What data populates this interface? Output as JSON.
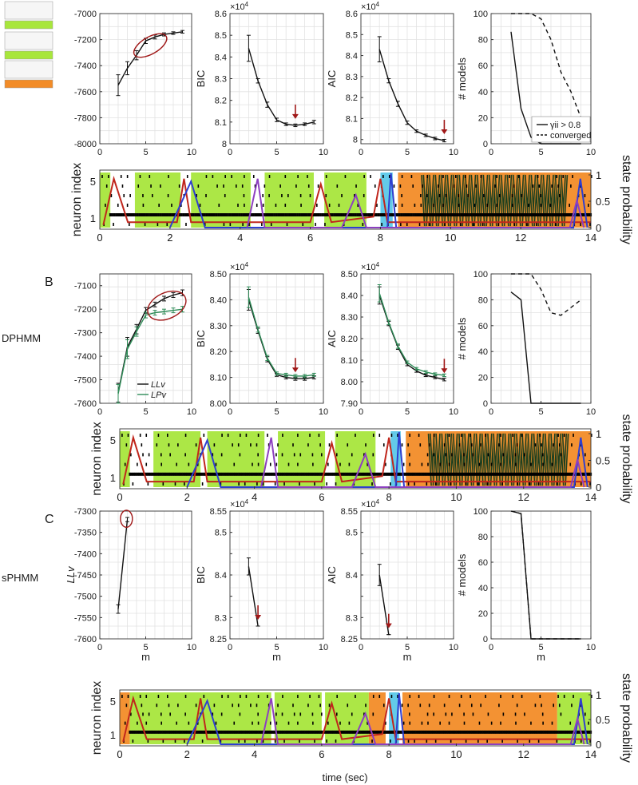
{
  "figure": {
    "panel_letters": [
      "B",
      "C"
    ],
    "row_labels": [
      "DPHMM",
      "sPHMM"
    ],
    "xlabel_m": "m",
    "xlabel_time": "time (sec)",
    "ylabel_raster": "neuron index",
    "ylabel_state": "state probability",
    "exp_label": "×10",
    "exp_power": "4"
  },
  "chart_data": [
    {
      "id": "A-LL",
      "type": "line",
      "row": "A",
      "col": "ll",
      "xlim": [
        0,
        10
      ],
      "ylim": [
        -8000,
        -7000
      ],
      "grid": true,
      "xticks": [
        0,
        5,
        10
      ],
      "yticks": [
        -7000,
        -7200,
        -7400,
        -7600,
        -7800,
        -8000
      ],
      "ylabel": "",
      "xlabel": "",
      "series": [
        {
          "name": "LL",
          "color": "#111111",
          "x": [
            2,
            3,
            4,
            5,
            6,
            7,
            8,
            9
          ],
          "y": [
            -7550,
            -7420,
            -7320,
            -7210,
            -7180,
            -7160,
            -7150,
            -7140
          ],
          "err": [
            80,
            50,
            35,
            20,
            15,
            12,
            10,
            10
          ]
        }
      ],
      "ellipse": {
        "cx": 5.5,
        "cy": -7245,
        "rx": 2.0,
        "ry": 65,
        "rot": -30
      },
      "has_inset": true
    },
    {
      "id": "A-BIC",
      "type": "line",
      "row": "A",
      "col": "bic",
      "xlim": [
        0,
        10
      ],
      "ylim": [
        8.0,
        8.6
      ],
      "grid": true,
      "xticks": [
        0,
        5,
        10
      ],
      "yticks": [
        8,
        8.1,
        8.2,
        8.3,
        8.4,
        8.5,
        8.6
      ],
      "ylabel": "BIC",
      "exponent": true,
      "series": [
        {
          "name": "BIC",
          "color": "#111111",
          "x": [
            2,
            3,
            4,
            5,
            6,
            7,
            8,
            9
          ],
          "y": [
            8.44,
            8.29,
            8.18,
            8.11,
            8.09,
            8.085,
            8.09,
            8.1
          ],
          "err": [
            0.06,
            0.01,
            0.012,
            0.008,
            0.006,
            0.006,
            0.006,
            0.008
          ]
        }
      ],
      "arrow_x": 7
    },
    {
      "id": "A-AIC",
      "type": "line",
      "row": "A",
      "col": "aic",
      "xlim": [
        0,
        10
      ],
      "ylim": [
        7.98,
        8.6
      ],
      "grid": true,
      "xticks": [
        0,
        5,
        10
      ],
      "yticks": [
        8,
        8.1,
        8.2,
        8.3,
        8.4,
        8.5,
        8.6
      ],
      "ylabel": "AIC",
      "exponent": true,
      "series": [
        {
          "name": "AIC",
          "color": "#111111",
          "x": [
            2,
            3,
            4,
            5,
            6,
            7,
            8,
            9
          ],
          "y": [
            8.43,
            8.28,
            8.17,
            8.08,
            8.04,
            8.02,
            8.005,
            7.995
          ],
          "err": [
            0.06,
            0.01,
            0.012,
            0.008,
            0.006,
            0.006,
            0.006,
            0.006
          ]
        }
      ],
      "arrow_x": 9
    },
    {
      "id": "A-MOD",
      "type": "line",
      "row": "A",
      "col": "mod",
      "xlim": [
        0,
        10
      ],
      "ylim": [
        0,
        100
      ],
      "grid": true,
      "xticks": [
        0,
        5,
        10
      ],
      "yticks": [
        0,
        20,
        40,
        60,
        80,
        100
      ],
      "ylabel": "# models",
      "series": [
        {
          "name": "γii > 0.8",
          "color": "#111111",
          "dash": "",
          "x": [
            2,
            3,
            4,
            5,
            6,
            7,
            8,
            9
          ],
          "y": [
            86,
            27,
            5,
            0,
            0,
            0,
            0,
            0
          ]
        },
        {
          "name": "converged",
          "color": "#111111",
          "dash": "5,4",
          "x": [
            2,
            3,
            4,
            5,
            6,
            7,
            8,
            9
          ],
          "y": [
            100,
            100,
            100,
            96,
            80,
            55,
            40,
            20
          ]
        }
      ],
      "legend": [
        "γii > 0.8",
        "converged"
      ],
      "legend_loc": "lower-right"
    },
    {
      "id": "B-LL",
      "type": "line",
      "row": "B",
      "col": "ll",
      "xlim": [
        0,
        10
      ],
      "ylim": [
        -7600,
        -7050
      ],
      "grid": true,
      "xticks": [
        0,
        5,
        10
      ],
      "yticks": [
        -7100,
        -7200,
        -7300,
        -7400,
        -7500,
        -7600
      ],
      "ylabel": "",
      "series": [
        {
          "name": "LLv",
          "color": "#111111",
          "x": [
            2,
            3,
            4,
            5,
            6,
            7,
            8,
            9
          ],
          "y": [
            -7555,
            -7360,
            -7285,
            -7205,
            -7180,
            -7155,
            -7140,
            -7130
          ],
          "err": [
            40,
            40,
            20,
            12,
            10,
            10,
            10,
            12
          ]
        },
        {
          "name": "LPv",
          "color": "#2e8b57",
          "x": [
            2,
            3,
            4,
            5,
            6,
            7,
            8,
            9
          ],
          "y": [
            -7560,
            -7370,
            -7295,
            -7225,
            -7215,
            -7210,
            -7205,
            -7200
          ],
          "err": [
            40,
            40,
            20,
            12,
            10,
            10,
            10,
            12
          ]
        }
      ],
      "ellipse": {
        "cx": 7.3,
        "cy": -7185,
        "rx": 2.2,
        "ry": 55,
        "rot": -25
      },
      "legend": [
        "LLv",
        "LPv"
      ],
      "legend_loc": "lower-right"
    },
    {
      "id": "B-BIC",
      "type": "line",
      "row": "B",
      "col": "bic",
      "xlim": [
        0,
        10
      ],
      "ylim": [
        8.0,
        8.5
      ],
      "grid": true,
      "xticks": [
        0,
        5,
        10
      ],
      "yticks": [
        8.0,
        8.1,
        8.2,
        8.3,
        8.4,
        8.5
      ],
      "ytick_labels": [
        "8.00",
        "8.10",
        "8.20",
        "8.30",
        "8.40",
        "8.50"
      ],
      "ylabel": "BIC",
      "exponent": true,
      "series": [
        {
          "name": "LLv",
          "color": "#111111",
          "x": [
            2,
            3,
            4,
            5,
            6,
            7,
            8,
            9
          ],
          "y": [
            8.4,
            8.28,
            8.17,
            8.11,
            8.1,
            8.095,
            8.095,
            8.1
          ],
          "err": [
            0.04,
            0.01,
            0.01,
            0.006,
            0.006,
            0.006,
            0.006,
            0.006
          ]
        },
        {
          "name": "LPv",
          "color": "#2e8b57",
          "x": [
            2,
            3,
            4,
            5,
            6,
            7,
            8,
            9
          ],
          "y": [
            8.41,
            8.285,
            8.175,
            8.115,
            8.11,
            8.105,
            8.105,
            8.11
          ],
          "err": [
            0.04,
            0.01,
            0.01,
            0.006,
            0.006,
            0.006,
            0.006,
            0.006
          ]
        }
      ],
      "arrow_x": 7
    },
    {
      "id": "B-AIC",
      "type": "line",
      "row": "B",
      "col": "aic",
      "xlim": [
        0,
        10
      ],
      "ylim": [
        7.9,
        8.5
      ],
      "grid": true,
      "xticks": [
        0,
        5,
        10
      ],
      "yticks": [
        7.9,
        8.0,
        8.1,
        8.2,
        8.3,
        8.4,
        8.5
      ],
      "ytick_labels": [
        "7.90",
        "8.00",
        "8.10",
        "8.20",
        "8.30",
        "8.40",
        "8.50"
      ],
      "ylabel": "AIC",
      "exponent": true,
      "series": [
        {
          "name": "LLv",
          "color": "#111111",
          "x": [
            2,
            3,
            4,
            5,
            6,
            7,
            8,
            9
          ],
          "y": [
            8.4,
            8.27,
            8.16,
            8.08,
            8.05,
            8.03,
            8.02,
            8.01
          ],
          "err": [
            0.04,
            0.01,
            0.01,
            0.006,
            0.006,
            0.006,
            0.006,
            0.006
          ]
        },
        {
          "name": "LPv",
          "color": "#2e8b57",
          "x": [
            2,
            3,
            4,
            5,
            6,
            7,
            8,
            9
          ],
          "y": [
            8.41,
            8.275,
            8.165,
            8.09,
            8.06,
            8.045,
            8.035,
            8.03
          ],
          "err": [
            0.04,
            0.01,
            0.01,
            0.006,
            0.006,
            0.006,
            0.006,
            0.006
          ]
        }
      ],
      "arrow_x": 9
    },
    {
      "id": "B-MOD",
      "type": "line",
      "row": "B",
      "col": "mod",
      "xlim": [
        0,
        10
      ],
      "ylim": [
        0,
        100
      ],
      "grid": true,
      "xticks": [
        0,
        5,
        10
      ],
      "yticks": [
        0,
        20,
        40,
        60,
        80,
        100
      ],
      "ylabel": "# models",
      "series": [
        {
          "name": "γii > 0.8",
          "color": "#111111",
          "dash": "",
          "x": [
            2,
            3,
            4,
            5,
            6,
            7,
            8,
            9
          ],
          "y": [
            86,
            80,
            0,
            0,
            0,
            0,
            0,
            0
          ]
        },
        {
          "name": "converged",
          "color": "#111111",
          "dash": "5,4",
          "x": [
            2,
            3,
            4,
            5,
            6,
            7,
            8,
            9
          ],
          "y": [
            100,
            100,
            100,
            88,
            70,
            68,
            74,
            80
          ]
        }
      ]
    },
    {
      "id": "C-LL",
      "type": "line",
      "row": "C",
      "col": "ll",
      "xlim": [
        0,
        10
      ],
      "ylim": [
        -7600,
        -7300
      ],
      "grid": true,
      "xticks": [
        0,
        5,
        10
      ],
      "yticks": [
        -7300,
        -7350,
        -7400,
        -7450,
        -7500,
        -7550,
        -7600
      ],
      "ylabel": "LLv",
      "series": [
        {
          "name": "LLv",
          "color": "#111111",
          "x": [
            2,
            3
          ],
          "y": [
            -7530,
            -7320
          ],
          "err": [
            10,
            5
          ]
        }
      ],
      "ellipse": {
        "cx": 2.9,
        "cy": -7318,
        "rx": 0.65,
        "ry": 20,
        "rot": 0
      }
    },
    {
      "id": "C-BIC",
      "type": "line",
      "row": "C",
      "col": "bic",
      "xlim": [
        0,
        10
      ],
      "ylim": [
        8.25,
        8.55
      ],
      "grid": true,
      "xticks": [
        0,
        5,
        10
      ],
      "yticks": [
        8.25,
        8.3,
        8.35,
        8.4,
        8.45,
        8.5,
        8.55
      ],
      "ytick_labels": [
        "8.25",
        "8.3",
        "",
        "8.4",
        "",
        "8.5",
        "8.55"
      ],
      "ylabel": "BIC",
      "exponent": true,
      "series": [
        {
          "name": "BIC",
          "color": "#111111",
          "x": [
            2,
            3
          ],
          "y": [
            8.42,
            8.28
          ],
          "err": [
            0.02,
            0.0
          ]
        }
      ],
      "arrow_x": 3
    },
    {
      "id": "C-AIC",
      "type": "line",
      "row": "C",
      "col": "aic",
      "xlim": [
        0,
        10
      ],
      "ylim": [
        8.25,
        8.55
      ],
      "grid": true,
      "xticks": [
        0,
        5,
        10
      ],
      "yticks": [
        8.25,
        8.3,
        8.35,
        8.4,
        8.45,
        8.5,
        8.55
      ],
      "ytick_labels": [
        "8.25",
        "8.3",
        "",
        "8.4",
        "",
        "8.5",
        "8.55"
      ],
      "ylabel": "AIC",
      "exponent": true,
      "series": [
        {
          "name": "AIC",
          "color": "#111111",
          "x": [
            2,
            3
          ],
          "y": [
            8.4,
            8.26
          ],
          "err": [
            0.025,
            0.0
          ]
        }
      ],
      "arrow_x": 3
    },
    {
      "id": "C-MOD",
      "type": "line",
      "row": "C",
      "col": "mod",
      "xlim": [
        0,
        10
      ],
      "ylim": [
        0,
        100
      ],
      "grid": true,
      "xticks": [
        0,
        5,
        10
      ],
      "yticks": [
        0,
        20,
        40,
        60,
        80,
        100
      ],
      "ylabel": "# models",
      "series": [
        {
          "name": "γii > 0.8",
          "color": "#111111",
          "dash": "",
          "x": [
            2,
            3,
            4,
            5,
            6,
            7,
            8,
            9
          ],
          "y": [
            100,
            98,
            0,
            0,
            0,
            0,
            0,
            0
          ]
        },
        {
          "name": "converged",
          "color": "#111111",
          "dash": "5,4",
          "x": [
            2,
            3,
            4,
            5,
            6,
            7,
            8,
            9
          ],
          "y": [
            100,
            98,
            0,
            0,
            0,
            0,
            0,
            0
          ]
        }
      ]
    },
    {
      "id": "A-RASTER",
      "type": "area",
      "row": "A",
      "col": "raster",
      "xlim": [
        0,
        14
      ],
      "xticks": [
        0,
        2,
        4,
        6,
        8,
        10,
        12,
        14
      ],
      "yticks_left": [
        1,
        5
      ],
      "yticks_right": [
        0,
        0.5,
        1
      ],
      "ytick_right_labels": [
        "0",
        "0.5",
        "1"
      ],
      "colors": {
        "green": "#a8e63c",
        "orange": "#f28c28",
        "blue": "#5bc8e8",
        "dark": "#1e4020"
      },
      "states": [
        {
          "from": 0.0,
          "to": 0.3,
          "state": "green"
        },
        {
          "from": 1.0,
          "to": 2.3,
          "state": "green"
        },
        {
          "from": 2.6,
          "to": 4.3,
          "state": "green"
        },
        {
          "from": 4.7,
          "to": 6.1,
          "state": "green"
        },
        {
          "from": 6.4,
          "to": 7.6,
          "state": "green"
        },
        {
          "from": 8.0,
          "to": 8.35,
          "state": "blue"
        },
        {
          "from": 8.5,
          "to": 14.0,
          "state": "orange"
        }
      ],
      "oscillation": {
        "from": 9.2,
        "to": 13.3,
        "state": "dark"
      }
    },
    {
      "id": "B-RASTER",
      "type": "area",
      "row": "B",
      "col": "raster",
      "xlim": [
        0,
        14
      ],
      "xticks": [
        0,
        2,
        4,
        6,
        8,
        10,
        12,
        14
      ],
      "yticks_left": [
        1,
        5
      ],
      "yticks_right": [
        0,
        0.5,
        1
      ],
      "ytick_right_labels": [
        "0",
        "0.5",
        "1"
      ],
      "colors": {
        "green": "#a8e63c",
        "orange": "#f28c28",
        "blue": "#5bc8e8",
        "dark": "#1e4020"
      },
      "states": [
        {
          "from": 0.0,
          "to": 0.3,
          "state": "green"
        },
        {
          "from": 1.0,
          "to": 2.4,
          "state": "green"
        },
        {
          "from": 2.6,
          "to": 4.3,
          "state": "green"
        },
        {
          "from": 4.7,
          "to": 6.1,
          "state": "green"
        },
        {
          "from": 6.4,
          "to": 7.6,
          "state": "green"
        },
        {
          "from": 8.05,
          "to": 8.35,
          "state": "blue"
        },
        {
          "from": 8.5,
          "to": 14.0,
          "state": "orange"
        }
      ],
      "oscillation": {
        "from": 9.2,
        "to": 13.3,
        "state": "dark"
      }
    },
    {
      "id": "C-RASTER",
      "type": "area",
      "row": "C",
      "col": "raster",
      "xlim": [
        0,
        14
      ],
      "xticks": [
        0,
        2,
        4,
        6,
        8,
        10,
        12,
        14
      ],
      "yticks_left": [
        1,
        5
      ],
      "yticks_right": [
        0,
        0.5,
        1
      ],
      "ytick_right_labels": [
        "0",
        "0.5",
        "1"
      ],
      "colors": {
        "green": "#a8e63c",
        "orange": "#f28c28",
        "blue": "#5bc8e8",
        "dark": "#1e4020"
      },
      "states": [
        {
          "from": 0.0,
          "to": 0.3,
          "state": "orange"
        },
        {
          "from": 0.3,
          "to": 4.5,
          "state": "green"
        },
        {
          "from": 4.6,
          "to": 6.0,
          "state": "green"
        },
        {
          "from": 6.1,
          "to": 7.4,
          "state": "green"
        },
        {
          "from": 7.4,
          "to": 7.9,
          "state": "orange"
        },
        {
          "from": 8.0,
          "to": 8.3,
          "state": "blue"
        },
        {
          "from": 8.4,
          "to": 13.0,
          "state": "orange"
        },
        {
          "from": 13.0,
          "to": 14.0,
          "state": "green"
        }
      ],
      "xlabel": "time (sec)"
    }
  ]
}
